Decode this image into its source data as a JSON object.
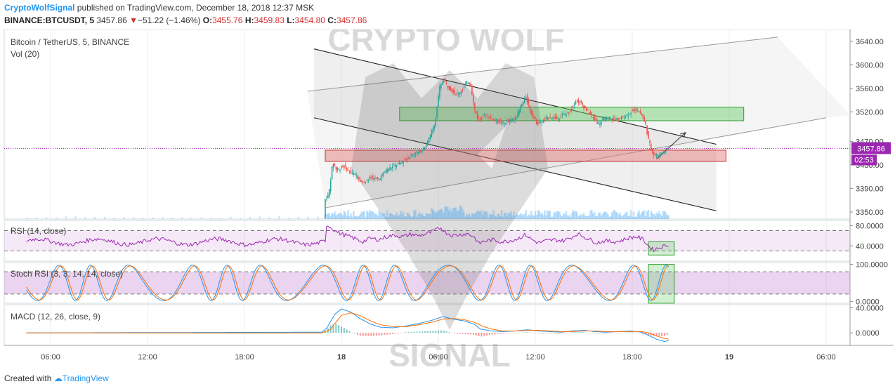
{
  "header": {
    "author": "CryptoWolfSignal",
    "published": "published on TradingView.com, December 18, 2018 12:37 MSK",
    "symbol": "BINANCE:BTCUSDT, 5",
    "last": "3457.86",
    "arrow": "▼",
    "change": "−51.22 (−1.46%)",
    "o_label": "O:",
    "o": "3455.76",
    "h_label": "H:",
    "h": "3459.83",
    "l_label": "L:",
    "l": "3454.80",
    "c_label": "C:",
    "c": "3457.86"
  },
  "watermark": {
    "top": "CRYPTO WOLF",
    "bottom": "SIGNAL"
  },
  "footer": {
    "created": "Created with",
    "brand": "TradingView"
  },
  "colors": {
    "up": "#26a69a",
    "down": "#ef5350",
    "price_line": "#9c27b0",
    "rsi": "#9c27b0",
    "stoch_k": "#2196f3",
    "stoch_d": "#ff6d00",
    "macd": "#2196f3",
    "signal": "#ff6d00",
    "green_zone": "#66cc66",
    "red_zone": "#e57373"
  },
  "chart_data": {
    "type": "candlestick",
    "main_pane": {
      "title": "Bitcoin / TetherUS, 5, BINANCE",
      "volume_label": "Vol (20)",
      "y_ticks": [
        "3640.00",
        "3600.00",
        "3560.00",
        "3520.00",
        "3470.00",
        "3430.00",
        "3390.00",
        "3350.00"
      ],
      "ylim": [
        3338,
        3660
      ],
      "last_price": "3457.86",
      "countdown": "02:53",
      "path": [
        [
          15.0,
          3340
        ],
        [
          15.05,
          3370
        ],
        [
          15.3,
          3380
        ],
        [
          15.55,
          3435
        ],
        [
          15.8,
          3420
        ],
        [
          16.2,
          3428
        ],
        [
          16.6,
          3418
        ],
        [
          17.0,
          3412
        ],
        [
          17.4,
          3400
        ],
        [
          17.9,
          3408
        ],
        [
          18.4,
          3405
        ],
        [
          18.8,
          3420
        ],
        [
          19.3,
          3428
        ],
        [
          19.7,
          3432
        ],
        [
          20.1,
          3440
        ],
        [
          20.5,
          3448
        ],
        [
          20.9,
          3452
        ],
        [
          21.3,
          3462
        ],
        [
          21.6,
          3480
        ],
        [
          21.9,
          3505
        ],
        [
          22.15,
          3560
        ],
        [
          22.4,
          3575
        ],
        [
          22.7,
          3562
        ],
        [
          23.0,
          3555
        ],
        [
          23.3,
          3550
        ],
        [
          23.6,
          3560
        ],
        [
          23.9,
          3572
        ],
        [
          24.1,
          3565
        ],
        [
          24.3,
          3525
        ],
        [
          24.6,
          3505
        ],
        [
          24.9,
          3515
        ],
        [
          25.3,
          3510
        ],
        [
          25.7,
          3505
        ],
        [
          26.1,
          3500
        ],
        [
          26.5,
          3505
        ],
        [
          26.9,
          3510
        ],
        [
          27.2,
          3530
        ],
        [
          27.5,
          3545
        ],
        [
          27.8,
          3520
        ],
        [
          28.2,
          3500
        ],
        [
          28.6,
          3505
        ],
        [
          29.0,
          3512
        ],
        [
          29.4,
          3508
        ],
        [
          29.8,
          3515
        ],
        [
          30.2,
          3520
        ],
        [
          30.6,
          3540
        ],
        [
          30.9,
          3535
        ],
        [
          31.2,
          3525
        ],
        [
          31.6,
          3512
        ],
        [
          32.0,
          3500
        ],
        [
          32.4,
          3508
        ],
        [
          32.8,
          3510
        ],
        [
          33.2,
          3507
        ],
        [
          33.6,
          3512
        ],
        [
          34.0,
          3520
        ],
        [
          34.3,
          3525
        ],
        [
          34.6,
          3518
        ],
        [
          34.9,
          3500
        ],
        [
          35.1,
          3470
        ],
        [
          35.4,
          3448
        ],
        [
          35.7,
          3445
        ],
        [
          36.0,
          3452
        ],
        [
          36.25,
          3458
        ]
      ]
    },
    "rsi_pane": {
      "title": "RSI (14, close)",
      "y_ticks": [
        "80.0000",
        "40.0000"
      ],
      "levels": [
        70,
        30
      ],
      "ylim": [
        10,
        90
      ],
      "path": [
        [
          15.0,
          50
        ],
        [
          15.05,
          82
        ],
        [
          15.4,
          75
        ],
        [
          15.8,
          66
        ],
        [
          16.3,
          60
        ],
        [
          16.8,
          55
        ],
        [
          17.3,
          48
        ],
        [
          17.8,
          55
        ],
        [
          18.3,
          52
        ],
        [
          18.8,
          58
        ],
        [
          19.3,
          61
        ],
        [
          19.8,
          58
        ],
        [
          20.3,
          63
        ],
        [
          20.8,
          60
        ],
        [
          21.3,
          64
        ],
        [
          21.8,
          70
        ],
        [
          22.15,
          76
        ],
        [
          22.5,
          66
        ],
        [
          22.9,
          60
        ],
        [
          23.3,
          62
        ],
        [
          23.8,
          64
        ],
        [
          24.2,
          58
        ],
        [
          24.5,
          45
        ],
        [
          24.9,
          50
        ],
        [
          25.4,
          52
        ],
        [
          25.9,
          48
        ],
        [
          26.4,
          50
        ],
        [
          26.9,
          54
        ],
        [
          27.4,
          62
        ],
        [
          27.8,
          52
        ],
        [
          28.2,
          46
        ],
        [
          28.7,
          50
        ],
        [
          29.2,
          52
        ],
        [
          29.7,
          50
        ],
        [
          30.2,
          56
        ],
        [
          30.6,
          64
        ],
        [
          31.0,
          58
        ],
        [
          31.4,
          52
        ],
        [
          31.8,
          46
        ],
        [
          32.3,
          50
        ],
        [
          32.8,
          48
        ],
        [
          33.3,
          50
        ],
        [
          33.8,
          56
        ],
        [
          34.3,
          58
        ],
        [
          34.7,
          52
        ],
        [
          35.0,
          40
        ],
        [
          35.3,
          32
        ],
        [
          35.6,
          36
        ],
        [
          36.0,
          40
        ],
        [
          36.25,
          43
        ]
      ]
    },
    "stoch_pane": {
      "title": "Stoch RSI (3, 3, 14, 14, close)",
      "y_ticks": [
        "100.0000",
        "0.0000"
      ],
      "levels": [
        80,
        20
      ],
      "ylim": [
        -5,
        105
      ]
    },
    "macd_pane": {
      "title": "MACD (12, 26, close, 9)",
      "y_ticks": [
        "40.0000",
        "0.0000"
      ],
      "ylim": [
        -20,
        45
      ],
      "macd_path": [
        [
          -3.5,
          0
        ],
        [
          14.8,
          1
        ],
        [
          15.1,
          8
        ],
        [
          15.6,
          30
        ],
        [
          16.0,
          38
        ],
        [
          16.6,
          33
        ],
        [
          17.2,
          22
        ],
        [
          17.8,
          14
        ],
        [
          18.4,
          9
        ],
        [
          19.2,
          8
        ],
        [
          20.0,
          11
        ],
        [
          20.8,
          15
        ],
        [
          21.6,
          20
        ],
        [
          22.3,
          26
        ],
        [
          22.9,
          22
        ],
        [
          23.6,
          19
        ],
        [
          24.2,
          14
        ],
        [
          24.6,
          6
        ],
        [
          25.3,
          3
        ],
        [
          26.0,
          2
        ],
        [
          26.8,
          3
        ],
        [
          27.5,
          5
        ],
        [
          28.2,
          3
        ],
        [
          28.9,
          2
        ],
        [
          29.6,
          1
        ],
        [
          30.3,
          3
        ],
        [
          31.0,
          4
        ],
        [
          31.7,
          2
        ],
        [
          32.4,
          1
        ],
        [
          33.1,
          2
        ],
        [
          33.9,
          3
        ],
        [
          34.6,
          1
        ],
        [
          35.0,
          -4
        ],
        [
          35.5,
          -10
        ],
        [
          36.0,
          -14
        ],
        [
          36.25,
          -12
        ]
      ],
      "signal_path": [
        [
          -3.5,
          0
        ],
        [
          14.8,
          0
        ],
        [
          15.3,
          5
        ],
        [
          16.0,
          28
        ],
        [
          16.6,
          32
        ],
        [
          17.2,
          27
        ],
        [
          17.8,
          19
        ],
        [
          18.4,
          13
        ],
        [
          19.2,
          10
        ],
        [
          20.0,
          10
        ],
        [
          20.8,
          13
        ],
        [
          21.6,
          17
        ],
        [
          22.3,
          22
        ],
        [
          22.9,
          23
        ],
        [
          23.6,
          21
        ],
        [
          24.2,
          17
        ],
        [
          24.8,
          10
        ],
        [
          25.3,
          6
        ],
        [
          26.0,
          3
        ],
        [
          26.8,
          3
        ],
        [
          27.5,
          4
        ],
        [
          28.2,
          4
        ],
        [
          28.9,
          3
        ],
        [
          29.6,
          2
        ],
        [
          30.3,
          2
        ],
        [
          31.0,
          3
        ],
        [
          31.7,
          3
        ],
        [
          32.4,
          2
        ],
        [
          33.1,
          2
        ],
        [
          33.9,
          2
        ],
        [
          34.6,
          2
        ],
        [
          35.0,
          0
        ],
        [
          35.5,
          -5
        ],
        [
          36.0,
          -9
        ],
        [
          36.25,
          -10
        ]
      ]
    },
    "x_ticks": [
      {
        "label": "06:00",
        "hour": -2,
        "bold": false
      },
      {
        "label": "12:00",
        "hour": 4,
        "bold": false
      },
      {
        "label": "18:00",
        "hour": 10,
        "bold": false
      },
      {
        "label": "18",
        "hour": 16,
        "bold": true
      },
      {
        "label": "06:00",
        "hour": 22,
        "bold": false
      },
      {
        "label": "12:00",
        "hour": 28,
        "bold": false
      },
      {
        "label": "18:00",
        "hour": 34,
        "bold": false
      },
      {
        "label": "19",
        "hour": 40,
        "bold": true
      },
      {
        "label": "06:00",
        "hour": 46,
        "bold": false
      }
    ],
    "drawings": {
      "green_zone": {
        "x0": 19.6,
        "x1": 40.9,
        "y0": 3505,
        "y1": 3528
      },
      "red_zone": {
        "x0": 15.0,
        "x1": 39.8,
        "y0": 3436,
        "y1": 3455
      },
      "descending_channel_top": [
        [
          14.3,
          3627
        ],
        [
          39.2,
          3465
        ]
      ],
      "descending_channel_bottom": [
        [
          14.3,
          3510
        ],
        [
          39.2,
          3352
        ]
      ],
      "ascending_channel_top": [
        [
          13.9,
          3555
        ],
        [
          43.0,
          3647
        ]
      ],
      "ascending_channel_bottom": [
        [
          15.0,
          3357
        ],
        [
          46.0,
          3510
        ]
      ],
      "arrow": [
        [
          35.5,
          3440
        ],
        [
          37.3,
          3485
        ]
      ],
      "rsi_box": {
        "x0": 35.0,
        "x1": 36.6,
        "y0": 22,
        "y1": 48
      },
      "stoch_box": {
        "x0": 35.0,
        "x1": 36.6,
        "y0": -5,
        "y1": 100
      }
    }
  }
}
